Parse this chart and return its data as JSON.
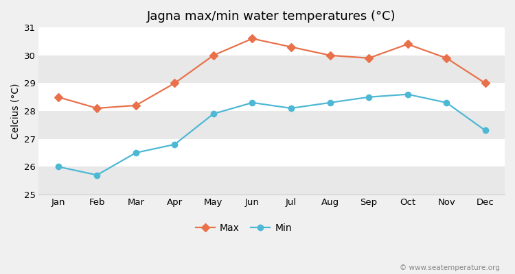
{
  "months": [
    "Jan",
    "Feb",
    "Mar",
    "Apr",
    "May",
    "Jun",
    "Jul",
    "Aug",
    "Sep",
    "Oct",
    "Nov",
    "Dec"
  ],
  "max_temps": [
    28.5,
    28.1,
    28.2,
    29.0,
    30.0,
    30.6,
    30.3,
    30.0,
    29.9,
    30.4,
    29.9,
    29.0
  ],
  "min_temps": [
    26.0,
    25.7,
    26.5,
    26.8,
    27.9,
    28.3,
    28.1,
    28.3,
    28.5,
    28.6,
    28.3,
    27.3
  ],
  "max_color": "#e8714a",
  "min_color": "#4db8d4",
  "title": "Jagna max/min water temperatures (°C)",
  "ylabel": "Celcius (°C)",
  "ylim": [
    25,
    31
  ],
  "yticks": [
    25,
    26,
    27,
    28,
    29,
    30,
    31
  ],
  "bg_color": "#f0f0f0",
  "plot_bg_color": "#ffffff",
  "band_color_light": "#ffffff",
  "band_color_dark": "#e8e8e8",
  "watermark": "© www.seatemperature.org",
  "legend_max": "Max",
  "legend_min": "Min",
  "title_fontsize": 13,
  "axis_fontsize": 10,
  "tick_fontsize": 9.5
}
